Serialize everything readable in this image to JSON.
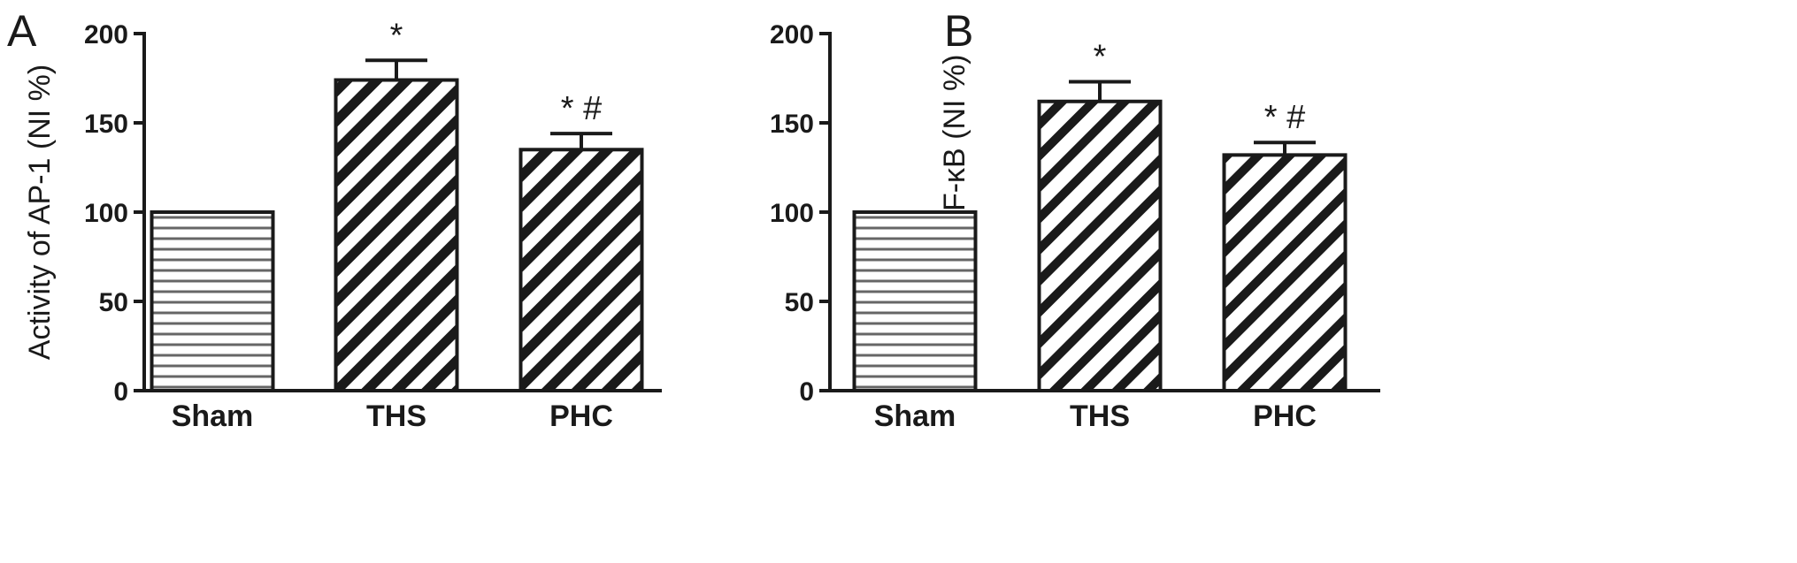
{
  "chart_data": [
    {
      "type": "bar",
      "panel": "A",
      "title": "",
      "xlabel": "",
      "ylabel": "Activity of AP-1 (NI %)",
      "ylim": [
        0,
        200
      ],
      "yticks": [
        "0",
        "50",
        "100",
        "150",
        "200"
      ],
      "categories": [
        "Sham",
        "THS",
        "PHC"
      ],
      "values": [
        100,
        174,
        135
      ],
      "errors": [
        0,
        11,
        9
      ],
      "patterns": [
        "horizontal",
        "diagonal-dense",
        "diagonal-dense"
      ],
      "annotations": [
        "",
        "*",
        "* #"
      ]
    },
    {
      "type": "bar",
      "panel": "B",
      "title": "",
      "xlabel": "",
      "ylabel": "Activity of NF-κB (NI %)",
      "ylim": [
        0,
        200
      ],
      "yticks": [
        "0",
        "50",
        "100",
        "150",
        "200"
      ],
      "categories": [
        "Sham",
        "THS",
        "PHC"
      ],
      "values": [
        100,
        162,
        132
      ],
      "errors": [
        0,
        11,
        7
      ],
      "patterns": [
        "horizontal",
        "diagonal",
        "diagonal"
      ],
      "annotations": [
        "",
        "*",
        "* #"
      ]
    }
  ],
  "colors": {
    "ink": "#1a1a1a",
    "hatch_light": "#555555",
    "background": "#ffffff"
  }
}
